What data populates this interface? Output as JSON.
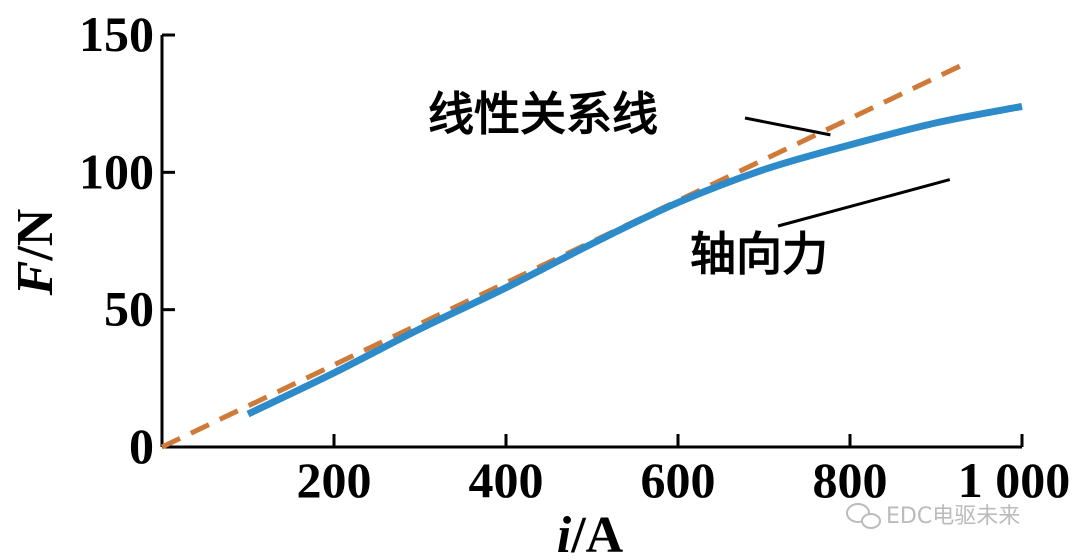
{
  "chart_data": {
    "type": "line",
    "title": "",
    "xlabel": {
      "var": "i",
      "unit": "/A"
    },
    "ylabel": {
      "var": "F",
      "unit": "/N"
    },
    "xlim": [
      0,
      1000
    ],
    "ylim": [
      0,
      150
    ],
    "x_ticks": [
      200,
      400,
      600,
      800,
      1000
    ],
    "x_tick_labels": [
      "200",
      "400",
      "600",
      "800",
      "1 000"
    ],
    "y_ticks": [
      0,
      50,
      100,
      150
    ],
    "y_tick_labels": [
      "0",
      "50",
      "100",
      "150"
    ],
    "grid": false,
    "series": [
      {
        "name": "线性关系线",
        "style": "dashed",
        "color": "#d07a3a",
        "x": [
          0,
          930
        ],
        "y": [
          0,
          139
        ]
      },
      {
        "name": "轴向力",
        "style": "solid",
        "color": "#2e8bc9",
        "x": [
          100,
          200,
          300,
          400,
          500,
          600,
          700,
          800,
          900,
          1000
        ],
        "y": [
          12,
          27,
          43,
          58,
          74,
          89,
          101,
          110,
          118,
          124
        ]
      }
    ],
    "annotations": [
      {
        "text": "线性关系线",
        "points_to": {
          "x": 740,
          "y": 110
        }
      },
      {
        "text": "轴向力",
        "points_to": {
          "x": 730,
          "y": 101
        }
      }
    ]
  },
  "watermark": {
    "text": "EDC电驱未来"
  }
}
